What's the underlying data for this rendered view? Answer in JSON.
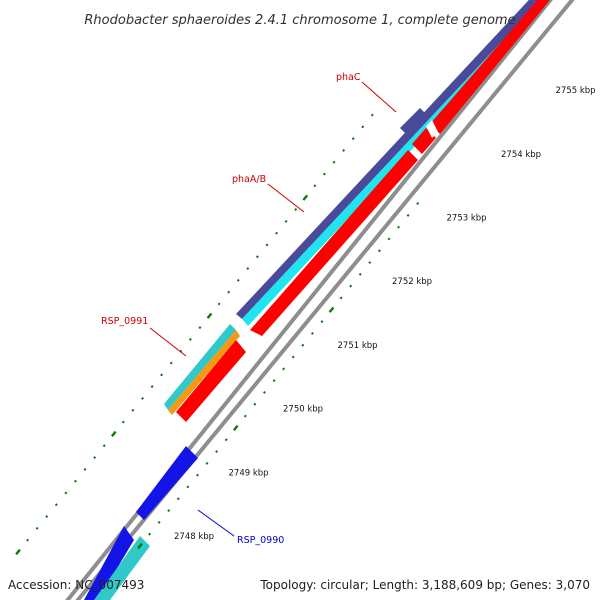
{
  "title": "Rhodobacter sphaeroides 2.4.1 chromosome 1, complete genome",
  "colors": {
    "backbone": "#8e8e8e",
    "forward_dark": "#4a4a9a",
    "forward_cyan": "#1ee5f0",
    "teal": "#30c8c8",
    "orange": "#f59a10",
    "reverse_red": "#ff0000",
    "blue": "#1414e6",
    "tick": "#0a7a0a",
    "label_red": "#cc0000",
    "label_blue": "#0000cc"
  },
  "ticks": [
    {
      "label": "2748 kbp",
      "kbp": 2748
    },
    {
      "label": "2749 kbp",
      "kbp": 2749
    },
    {
      "label": "2750 kbp",
      "kbp": 2750
    },
    {
      "label": "2751 kbp",
      "kbp": 2751
    },
    {
      "label": "2752 kbp",
      "kbp": 2752
    },
    {
      "label": "2753 kbp",
      "kbp": 2753
    },
    {
      "label": "2754 kbp",
      "kbp": 2754
    },
    {
      "label": "2755 kbp",
      "kbp": 2755
    }
  ],
  "gene_labels": [
    {
      "name": "phaC",
      "color": "red"
    },
    {
      "name": "phaA/B",
      "color": "red"
    },
    {
      "name": "RSP_0991",
      "color": "red"
    },
    {
      "name": "RSP_0990",
      "color": "blue"
    }
  ],
  "footer": {
    "accession": "Accession: NC_007493",
    "summary": "Topology: circular; Length: 3,188,609 bp; Genes: 3,070"
  }
}
